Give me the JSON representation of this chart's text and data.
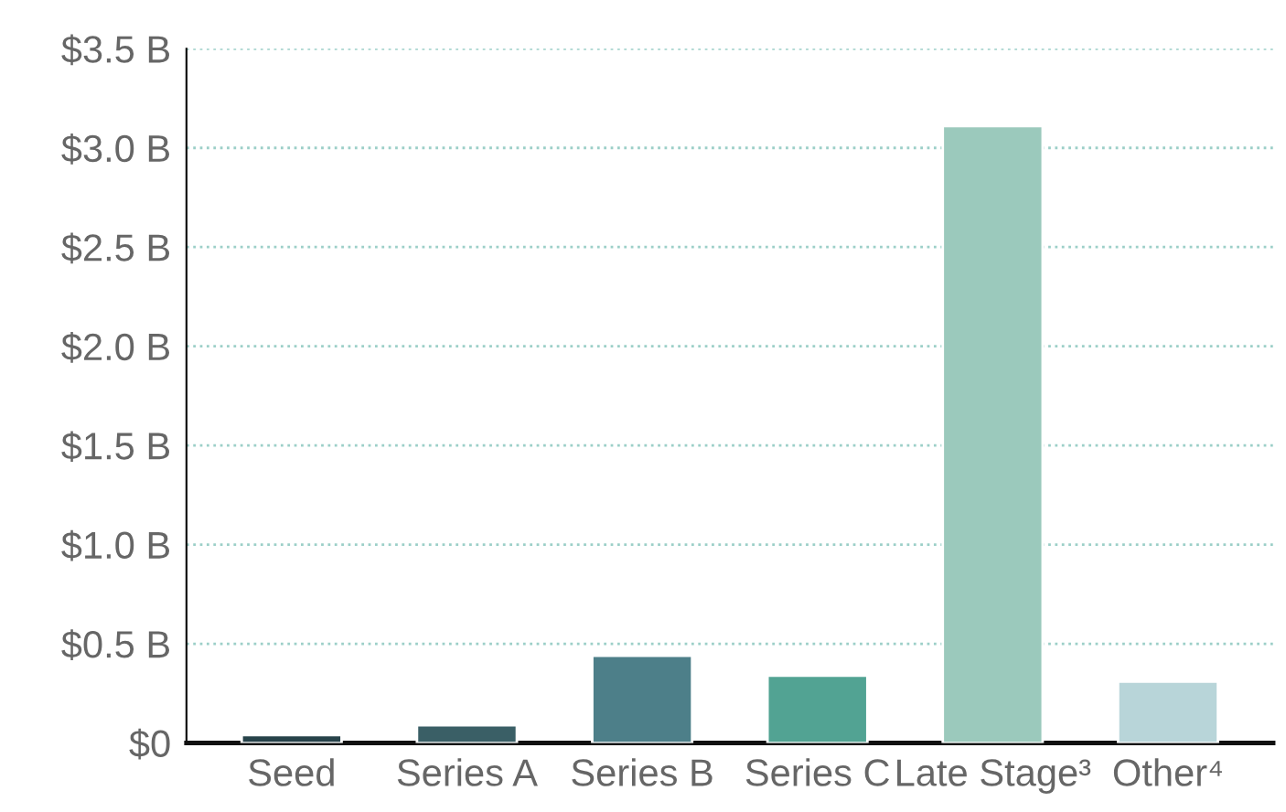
{
  "chart_data": {
    "type": "bar",
    "categories": [
      "Seed",
      "Series A",
      "Series B",
      "Series C",
      "Late Stage³",
      "Other⁴"
    ],
    "values": [
      0.04,
      0.09,
      0.44,
      0.34,
      3.11,
      0.31
    ],
    "colors": [
      "#27434a",
      "#3a5f66",
      "#4d7f89",
      "#52a393",
      "#9bc9bc",
      "#b8d5d9"
    ],
    "ylim": [
      0,
      3.5
    ],
    "yticks": [
      {
        "value": 0,
        "label": "$0"
      },
      {
        "value": 0.5,
        "label": "$0.5 B"
      },
      {
        "value": 1.0,
        "label": "$1.0 B"
      },
      {
        "value": 1.5,
        "label": "$1.5 B"
      },
      {
        "value": 2.0,
        "label": "$2.0 B"
      },
      {
        "value": 2.5,
        "label": "$2.5 B"
      },
      {
        "value": 3.0,
        "label": "$3.0 B"
      },
      {
        "value": 3.5,
        "label": "$3.5 B"
      }
    ],
    "grid": "y"
  }
}
